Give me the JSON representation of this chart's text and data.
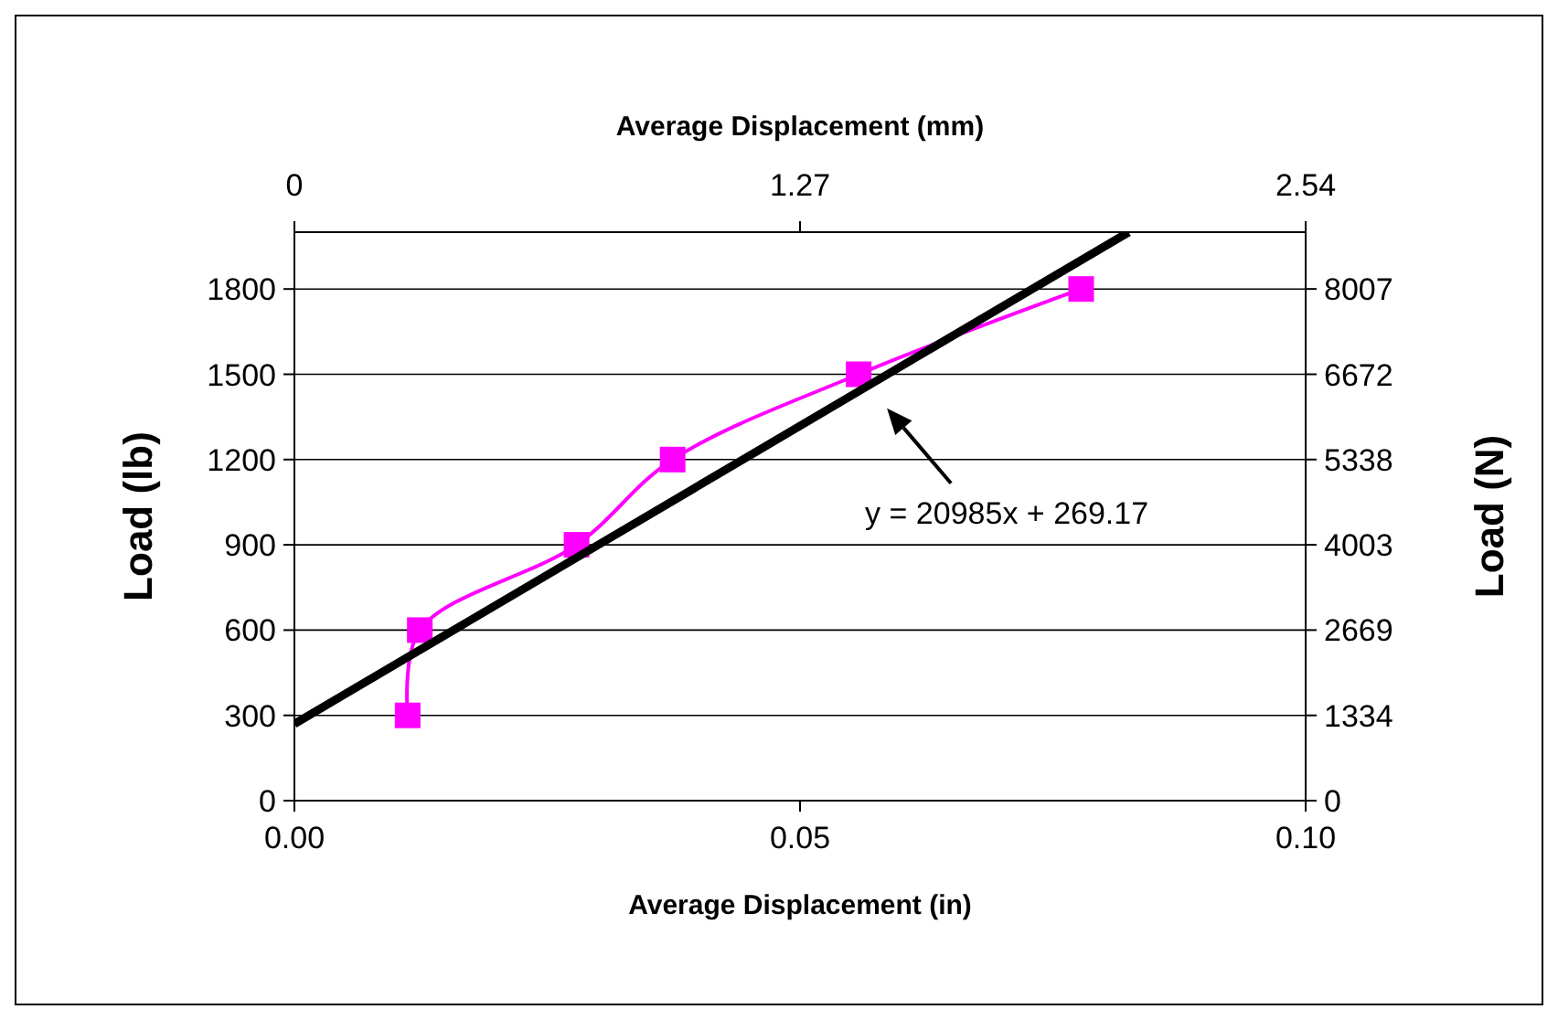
{
  "chart_data": {
    "type": "line",
    "xlabel": "Average Displacement (in)",
    "x2label": "Average Displacement (mm)",
    "ylabel": "Load (lb)",
    "y2label": "Load (N)",
    "xlim": [
      0,
      0.1
    ],
    "xticks": [
      {
        "value": 0,
        "label": "0.00"
      },
      {
        "value": 0.05,
        "label": "0.05"
      },
      {
        "value": 0.1,
        "label": "0.10"
      }
    ],
    "x2lim": [
      0,
      2.54
    ],
    "x2ticks": [
      0,
      1.27,
      2.54
    ],
    "ylim": [
      0,
      2000
    ],
    "yticks": [
      0,
      300,
      600,
      900,
      1200,
      1500,
      1800
    ],
    "y2lim": [
      0,
      8896
    ],
    "y2ticks": [
      0,
      1334,
      2669,
      4003,
      5338,
      6672,
      8007
    ],
    "grid": "y",
    "series": [
      {
        "color": "#ff00ff",
        "marker": "square",
        "x": [
          0.0112,
          0.0124,
          0.0279,
          0.0374,
          0.0558,
          0.0778
        ],
        "values": [
          300,
          600,
          900,
          1200,
          1500,
          1800
        ]
      },
      {
        "color": "#000000",
        "marker": "none",
        "x": [
          0,
          0.0825
        ],
        "values": [
          270,
          2000
        ]
      }
    ],
    "annotations": [
      "y = 20985x + 269.17"
    ]
  }
}
